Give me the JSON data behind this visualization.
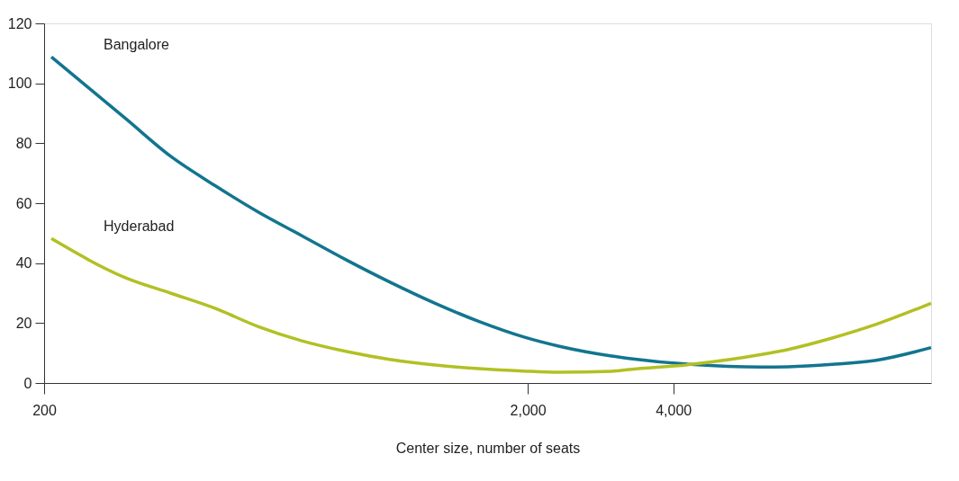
{
  "chart_data": {
    "type": "line",
    "xlabel": "Center size, number of seats",
    "log": "x",
    "xlim": [
      200,
      13650
    ],
    "xticks": [
      200,
      {
        "value": 2000,
        "label": "2,000"
      },
      {
        "value": 4000,
        "label": "4,000"
      }
    ],
    "ylim": [
      0,
      120
    ],
    "yticks": [
      0,
      20,
      40,
      60,
      80,
      100,
      120
    ],
    "grid": false,
    "legend": false,
    "marker": "none",
    "line_style": "solid",
    "x": [
      207,
      296,
      365,
      450,
      555,
      685,
      845,
      1043,
      1287,
      1587,
      1958,
      2317,
      2981,
      3243,
      4351,
      6090,
      6910,
      8522,
      10517,
      13650
    ],
    "series": [
      {
        "name": "Bangalore",
        "color": "#12758f",
        "values": [
          108.8,
          88,
          75.7,
          66,
          57,
          49,
          41,
          33.5,
          26.6,
          20.5,
          15.4,
          12.3,
          9.0,
          8.2,
          6.2,
          5.3,
          5.4,
          6.2,
          7.6,
          11.8
        ]
      },
      {
        "name": "Hyderabad",
        "color": "#b2c024",
        "values": [
          48.2,
          35,
          30,
          25,
          18.8,
          14,
          10.5,
          7.8,
          6.0,
          4.8,
          4.0,
          3.6,
          3.9,
          4.5,
          6.2,
          9.5,
          11.2,
          15.0,
          19.6,
          26.6
        ]
      }
    ]
  }
}
